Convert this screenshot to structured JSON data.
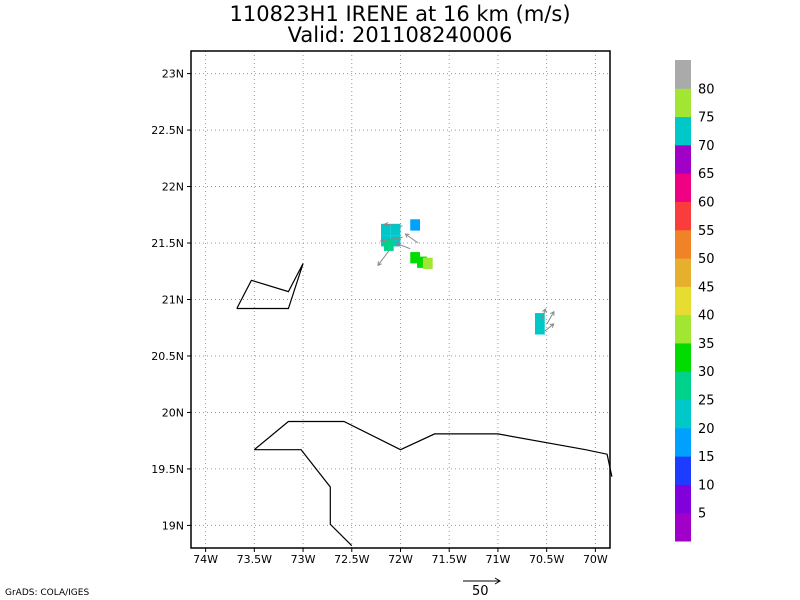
{
  "title_line1": "110823H1 IRENE at 16 km (m/s)",
  "title_line2": "Valid: 201108240006",
  "footer": "GrADS: COLA/IGES",
  "reference_vector_label": "50",
  "map": {
    "lon_range": [
      -74.15,
      -69.85
    ],
    "lat_range": [
      18.8,
      23.2
    ],
    "grid": true,
    "lon_ticks": [
      "74W",
      "73.5W",
      "73W",
      "72.5W",
      "72W",
      "71.5W",
      "71W",
      "70.5W",
      "70W"
    ],
    "lat_ticks": [
      "19N",
      "19.5N",
      "20N",
      "20.5N",
      "21N",
      "21.5N",
      "22N",
      "22.5N",
      "23N"
    ]
  },
  "colorbar": {
    "labels": [
      "5",
      "10",
      "15",
      "20",
      "25",
      "30",
      "35",
      "40",
      "45",
      "50",
      "55",
      "60",
      "65",
      "70",
      "75",
      "80"
    ],
    "colors": [
      "#a000c8",
      "#8200dc",
      "#1e3cff",
      "#00a0ff",
      "#00c8c8",
      "#00d28c",
      "#00dc00",
      "#a0e632",
      "#e6dc32",
      "#e6af2d",
      "#f08228",
      "#fa3c3c",
      "#f00082",
      "#a000c8",
      "#00c8c8",
      "#a0e632",
      "#aaaaaa"
    ]
  },
  "wind_cells": [
    {
      "lon": -72.15,
      "lat": 21.62,
      "color": "#00c8c8"
    },
    {
      "lon": -72.05,
      "lat": 21.62,
      "color": "#00c8c8"
    },
    {
      "lon": -72.15,
      "lat": 21.52,
      "color": "#00c8c8"
    },
    {
      "lon": -72.05,
      "lat": 21.52,
      "color": "#00c8c8"
    },
    {
      "lon": -72.12,
      "lat": 21.48,
      "color": "#00d28c"
    },
    {
      "lon": -71.85,
      "lat": 21.66,
      "color": "#00a0ff"
    },
    {
      "lon": -71.85,
      "lat": 21.37,
      "color": "#00dc00"
    },
    {
      "lon": -71.78,
      "lat": 21.33,
      "color": "#00dc00"
    },
    {
      "lon": -71.72,
      "lat": 21.32,
      "color": "#a0e632"
    },
    {
      "lon": -70.57,
      "lat": 20.83,
      "color": "#00c8c8"
    },
    {
      "lon": -70.57,
      "lat": 20.74,
      "color": "#00c8c8"
    }
  ],
  "wind_vectors": [
    {
      "lon": -71.98,
      "lat": 21.65,
      "u": -10,
      "v": 1
    },
    {
      "lon": -71.98,
      "lat": 21.55,
      "u": -12,
      "v": -2
    },
    {
      "lon": -72.12,
      "lat": 21.43,
      "u": -6,
      "v": -8
    },
    {
      "lon": -71.9,
      "lat": 21.45,
      "u": -8,
      "v": 3
    },
    {
      "lon": -71.82,
      "lat": 21.5,
      "u": -7,
      "v": 5
    },
    {
      "lon": -70.55,
      "lat": 20.82,
      "u": 2,
      "v": 6
    },
    {
      "lon": -70.5,
      "lat": 20.78,
      "u": 4,
      "v": 7
    },
    {
      "lon": -70.52,
      "lat": 20.72,
      "u": 5,
      "v": 4
    }
  ]
}
